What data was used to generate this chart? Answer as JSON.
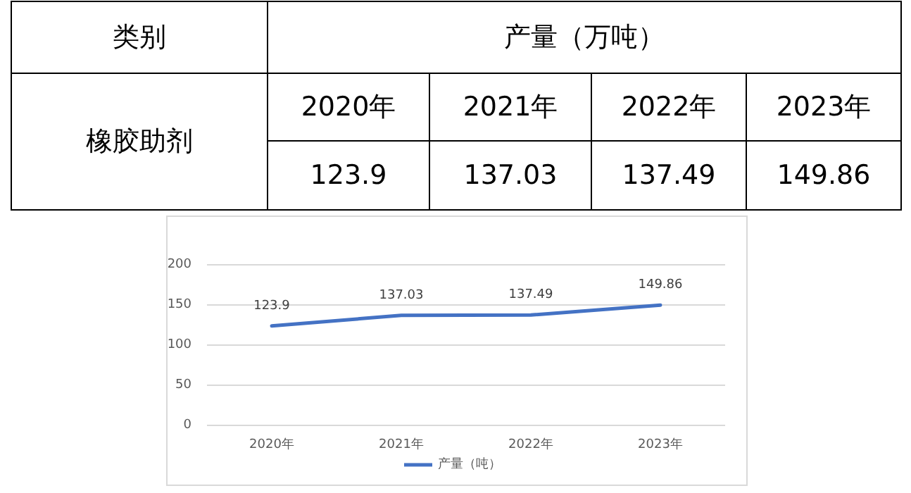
{
  "chart_data": {
    "type": "line",
    "categories": [
      "2020年",
      "2021年",
      "2022年",
      "2023年"
    ],
    "series": [
      {
        "name": "产量（吨）",
        "color": "#4472c4",
        "values": [
          123.9,
          137.03,
          137.49,
          149.86
        ],
        "value_labels": [
          "123.9",
          "137.03",
          "137.49",
          "149.86"
        ]
      }
    ],
    "ylim": [
      0,
      200
    ],
    "yticks": [
      0,
      50,
      100,
      150,
      200
    ],
    "grid": "y",
    "legend": "bottom",
    "marker": "none",
    "annotations": [
      "类别",
      "产量（万吨）",
      "橡胶助剂",
      "123.9",
      "137.03",
      "137.49",
      "149.86"
    ]
  }
}
